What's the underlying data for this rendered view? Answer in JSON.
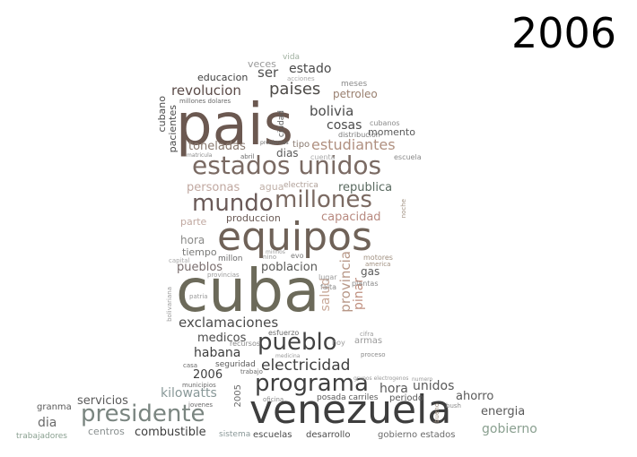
{
  "year_title": "2006",
  "words": [
    "pais",
    "cuba",
    "equipos",
    "venezuela",
    "estados unidos",
    "millones",
    "mundo",
    "presidente",
    "programa",
    "pueblo",
    "electricidad",
    "paises",
    "revolucion",
    "estudiantes",
    "bolivia",
    "exclamaciones",
    "provincia",
    "habana",
    "medicos",
    "kilowatts",
    "toneladas",
    "cosas",
    "estado",
    "personas",
    "republica",
    "capacidad",
    "pueblos",
    "poblacion",
    "dia",
    "servicios",
    "combustible",
    "gobierno",
    "energia",
    "ahorro",
    "hora",
    "unidos",
    "salud",
    "pinar",
    "ser",
    "veces",
    "educacion",
    "petroleo",
    "momento",
    "dias",
    "produccion",
    "parte",
    "hora",
    "tiempo",
    "gas",
    "2006",
    "armas",
    "granma",
    "centros",
    "sistema",
    "escuelas",
    "desarrollo",
    "gobierno estados",
    "posada carriles",
    "periodo",
    "seguridad",
    "cubano",
    "pacientes",
    "ciudad",
    "meses",
    "vida",
    "acciones",
    "agua",
    "electrica",
    "tipo",
    "cuenta",
    "escuela",
    "cubanos",
    "distribucion",
    "millon",
    "evo",
    "2005",
    "trabajadores",
    "jovenes",
    "municipios",
    "recursos",
    "esfuerzo",
    "casa",
    "trabajo",
    "oficina",
    "medicina",
    "proceso",
    "cifra",
    "lugar",
    "falta",
    "plantas",
    "motores",
    "america",
    "provincias",
    "capital",
    "patria",
    "bolivariana",
    "millones dolares",
    "problemas",
    "abril",
    "matricula",
    "nino",
    "minnos",
    "bush",
    "bueno",
    "numero",
    "grupos electrogenos",
    "noche",
    "hoy"
  ]
}
